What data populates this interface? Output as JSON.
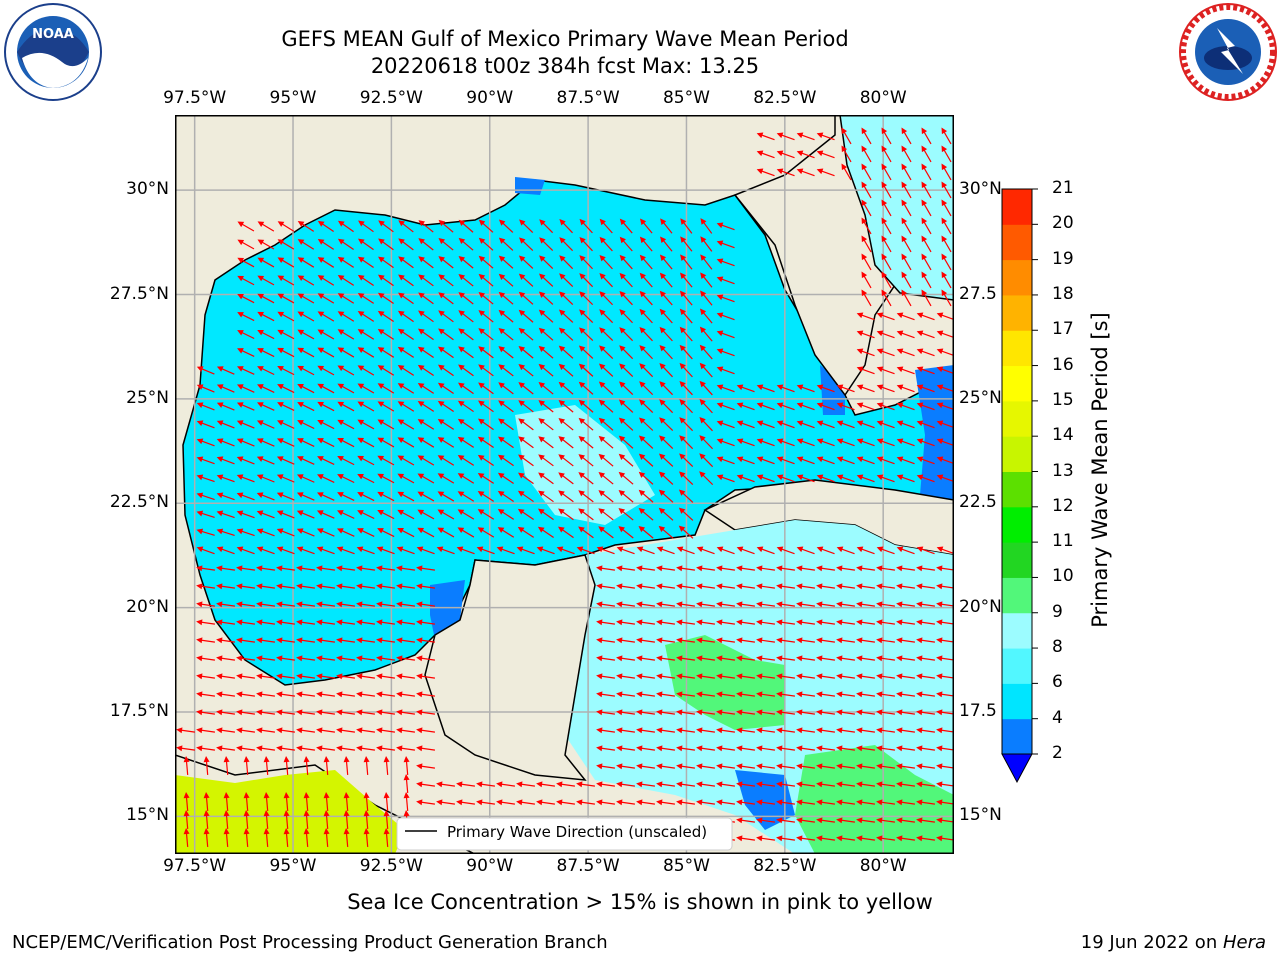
{
  "title": {
    "line1": "GEFS MEAN Gulf of Mexico Primary Wave Mean Period",
    "line2": "20220618 t00z 384h fcst   Max: 13.25"
  },
  "map": {
    "lon_labels": [
      "97.5°W",
      "95°W",
      "92.5°W",
      "90°W",
      "87.5°W",
      "85°W",
      "82.5°W",
      "80°W"
    ],
    "lat_labels": [
      "30°N",
      "27.5°N",
      "25°N",
      "22.5°N",
      "20°N",
      "17.5°N",
      "15°N"
    ],
    "lat_labels_right": [
      "30°N",
      "27.5",
      "25°N",
      "22.5",
      "20°N",
      "17.5",
      "15°N"
    ],
    "lon_range": [
      -98,
      -78.2
    ],
    "lat_range": [
      14.1,
      31.8
    ],
    "legend_label": "Primary Wave Direction (unscaled)",
    "arrow_color": "#ff0000",
    "land_color": "#efecdc"
  },
  "colorbar": {
    "label": "Primary Wave Mean Period [s]",
    "levels": [
      2,
      4,
      6,
      8,
      9,
      10,
      11,
      12,
      13,
      14,
      15,
      16,
      17,
      18,
      19,
      20,
      21
    ],
    "colors": [
      "#0a7dff",
      "#00e5ff",
      "#52f7ff",
      "#9cfcff",
      "#52f77a",
      "#22d622",
      "#00ee00",
      "#5ce000",
      "#c8f500",
      "#e6f700",
      "#ffff00",
      "#ffe600",
      "#ffb300",
      "#ff8c00",
      "#ff5a00",
      "#ff2800"
    ],
    "extend_color": "#0000ff"
  },
  "caption": "Sea Ice Concentration > 15% is shown in pink to yellow",
  "footer": {
    "left": "NCEP/EMC/Verification Post Processing Product Generation Branch",
    "right_date": "19 Jun 2022 on ",
    "right_host": "Hera"
  },
  "logos": {
    "noaa_text": "NOAA",
    "noaa_ring": "NATIONAL OCEANIC AND ATMOSPHERIC ADMINISTRATION · U.S. DEPARTMENT OF COMMERCE",
    "nws_ring": "NATIONAL WEATHER SERVICE"
  }
}
